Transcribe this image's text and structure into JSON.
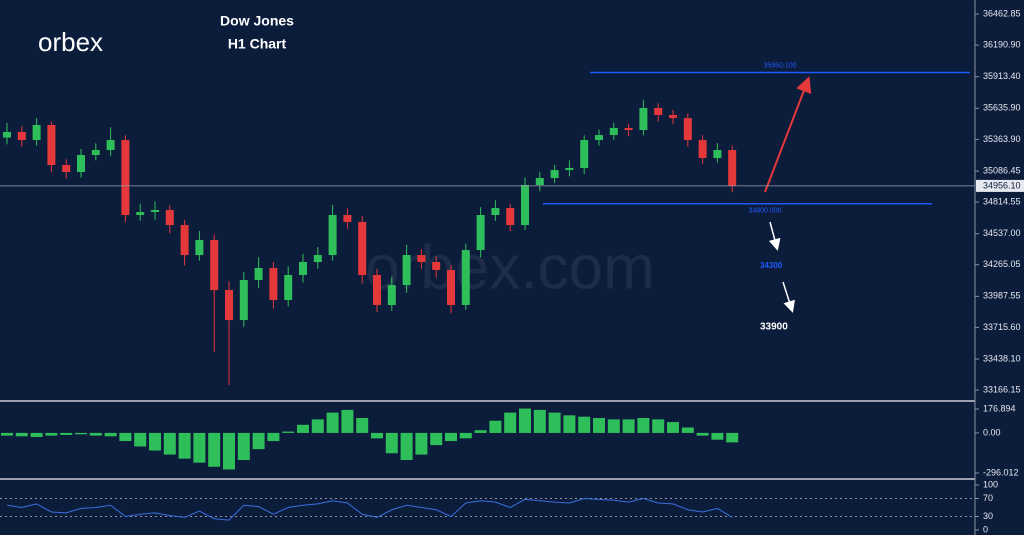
{
  "logo": "orbex",
  "watermark": "orbex.com",
  "chart_data": [
    {
      "type": "candlestick",
      "title": "Dow Jones",
      "subtitle": "H1 Chart",
      "open": [
        35380,
        35429,
        35358,
        35490,
        35139,
        35078,
        35227,
        35271,
        35358,
        34701,
        34727,
        34745,
        34613,
        34350,
        34482,
        34043,
        33780,
        34131,
        34236,
        33956,
        34175,
        34289,
        34350,
        34701,
        34640,
        34175,
        33912,
        34087,
        34350,
        34289,
        34219,
        33912,
        34394,
        34701,
        34762,
        34613,
        34964,
        35025,
        35095,
        35113,
        35358,
        35402,
        35464,
        35446,
        35639,
        35578,
        35551,
        35358,
        35201,
        35271
      ],
      "high": [
        35510,
        35480,
        35550,
        35520,
        35190,
        35280,
        35330,
        35470,
        35400,
        34800,
        34820,
        34790,
        34660,
        34560,
        34530,
        34120,
        34200,
        34330,
        34290,
        34250,
        34360,
        34420,
        34790,
        34760,
        34690,
        34230,
        34160,
        34440,
        34400,
        34340,
        34260,
        34450,
        34770,
        34830,
        34800,
        35030,
        35080,
        35140,
        35180,
        35400,
        35450,
        35510,
        35500,
        35710,
        35680,
        35620,
        35590,
        35400,
        35330,
        35310
      ],
      "low": [
        35320,
        35300,
        35310,
        35080,
        35020,
        35030,
        35180,
        35220,
        34640,
        34650,
        34660,
        34540,
        34260,
        34300,
        33500,
        33210,
        33720,
        34060,
        33880,
        33900,
        34110,
        34230,
        34300,
        34580,
        34100,
        33850,
        33860,
        34020,
        34230,
        34150,
        33840,
        33870,
        34330,
        34650,
        34560,
        34570,
        34910,
        34980,
        35040,
        35060,
        35310,
        35360,
        35390,
        35400,
        35520,
        35500,
        35300,
        35150,
        35160,
        34900
      ],
      "close": [
        35429,
        35358,
        35490,
        35139,
        35078,
        35227,
        35271,
        35358,
        34701,
        34727,
        34745,
        34613,
        34350,
        34482,
        34043,
        33780,
        34131,
        34236,
        33956,
        34175,
        34289,
        34350,
        34701,
        34640,
        34175,
        33912,
        34087,
        34350,
        34289,
        34219,
        33912,
        34394,
        34701,
        34762,
        34613,
        34964,
        35025,
        35095,
        35113,
        35358,
        35402,
        35464,
        35446,
        35639,
        35578,
        35551,
        35358,
        35201,
        35271,
        34956
      ],
      "up_color": "#2fbf5a",
      "down_color": "#e5383b",
      "ylim": [
        33079,
        36586
      ],
      "yticks": [
        36462.85,
        {
          "value": 36190.9,
          "label": "36190.90"
        },
        {
          "value": 35913.4,
          "label": "35913.40"
        },
        {
          "value": 35635.9,
          "label": "35635.90"
        },
        {
          "value": 35363.9,
          "label": "35363.90"
        },
        35086.45,
        34814.55,
        {
          "value": 34537,
          "label": "34537.00"
        },
        34265.05,
        33987.55,
        {
          "value": 33715.6,
          "label": "33715.60"
        },
        {
          "value": 33438.1,
          "label": "33438.10"
        },
        33166.15
      ],
      "last_price": {
        "value": 34956.1,
        "label": "34956.10"
      },
      "levels": [
        {
          "value": 35950.1,
          "label": "35950.100",
          "color": "#1e5bff"
        },
        {
          "value": 34800,
          "label": "34800.000",
          "color": "#1e5bff"
        }
      ],
      "annotations": [
        {
          "text": "34300",
          "color": "#1e5bff"
        },
        {
          "text": "33900",
          "color": "#ffffff"
        }
      ]
    },
    {
      "type": "bar",
      "color": "#2fbf5a",
      "values": [
        -20,
        -25,
        -30,
        -20,
        -15,
        -10,
        -20,
        -25,
        -60,
        -100,
        -130,
        -160,
        -190,
        -220,
        -250,
        -270,
        -200,
        -120,
        -60,
        10,
        60,
        100,
        150,
        170,
        110,
        -40,
        -150,
        -200,
        -160,
        -90,
        -60,
        -40,
        20,
        90,
        150,
        180,
        170,
        150,
        130,
        120,
        110,
        100,
        100,
        110,
        100,
        80,
        40,
        -20,
        -50,
        -70
      ],
      "ylim": [
        -333,
        221
      ],
      "yticks": [
        176.894,
        {
          "value": 0,
          "label": "0.00"
        },
        -296.012
      ]
    },
    {
      "type": "line",
      "color": "#3b6fe0",
      "values": [
        55,
        50,
        58,
        40,
        38,
        48,
        50,
        55,
        30,
        35,
        38,
        32,
        28,
        42,
        25,
        22,
        55,
        52,
        35,
        50,
        55,
        58,
        65,
        60,
        35,
        28,
        45,
        55,
        50,
        45,
        30,
        60,
        65,
        62,
        50,
        68,
        65,
        62,
        60,
        70,
        68,
        66,
        62,
        70,
        60,
        58,
        45,
        40,
        48,
        28
      ],
      "ylim": [
        0,
        100
      ],
      "yticks": [
        100,
        70,
        30,
        0
      ]
    }
  ]
}
